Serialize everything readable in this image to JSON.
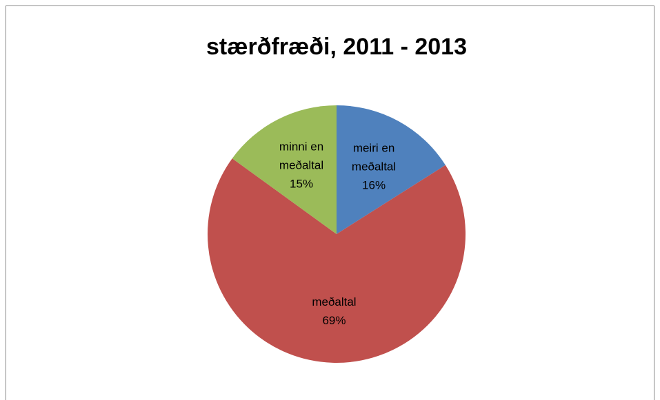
{
  "chart_data": {
    "type": "pie",
    "title": "stærðfræði, 2011 - 2013",
    "categories": [
      "meiri en meðaltal",
      "meðaltal",
      "minni en meðaltal"
    ],
    "values": [
      16,
      69,
      15
    ],
    "value_labels": [
      "16%",
      "69%",
      "15%"
    ],
    "colors": [
      "#4f81bd",
      "#c0504d",
      "#9bbb59"
    ]
  }
}
